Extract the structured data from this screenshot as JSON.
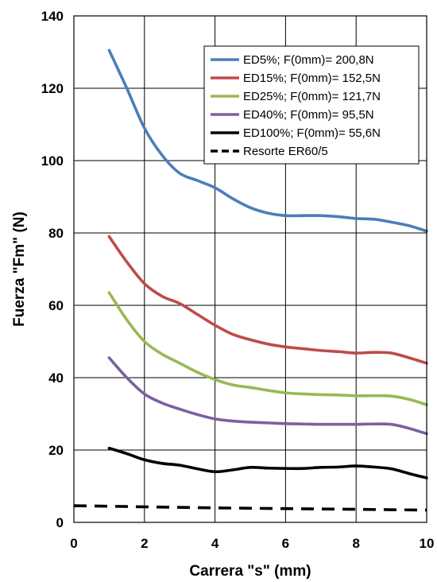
{
  "chart_data": {
    "type": "line",
    "xlabel": "Carrera \"s\" (mm)",
    "ylabel": "Fuerza \"Fm\" (N)",
    "xlim": [
      0,
      10
    ],
    "ylim": [
      0,
      140
    ],
    "xticks": [
      "0",
      "2",
      "4",
      "6",
      "8",
      "10"
    ],
    "yticks": [
      "0",
      "20",
      "40",
      "60",
      "80",
      "100",
      "120",
      "140"
    ],
    "grid": true,
    "legend_position": "top-right",
    "series": [
      {
        "name": "ED5%; F(0mm)= 200,8N",
        "color": "#4a7ebb",
        "dash": "solid",
        "x": [
          1,
          1.5,
          2,
          2.5,
          3,
          3.5,
          4,
          4.5,
          5,
          5.5,
          6,
          6.5,
          7,
          7.5,
          8,
          8.5,
          9,
          9.5,
          10
        ],
        "y": [
          130.5,
          120,
          109,
          101.5,
          96.5,
          94.5,
          92.5,
          89.5,
          87,
          85.5,
          84.8,
          84.8,
          84.8,
          84.5,
          84,
          83.8,
          83,
          82,
          80.5
        ]
      },
      {
        "name": "ED15%; F(0mm)= 152,5N",
        "color": "#be4b48",
        "dash": "solid",
        "x": [
          1,
          1.5,
          2,
          2.5,
          3,
          3.5,
          4,
          4.5,
          5,
          5.5,
          6,
          6.5,
          7,
          7.5,
          8,
          8.5,
          9,
          9.5,
          10
        ],
        "y": [
          79,
          72,
          66,
          62.5,
          60.5,
          57.5,
          54.5,
          52,
          50.5,
          49.3,
          48.5,
          48,
          47.5,
          47.2,
          46.8,
          47,
          46.8,
          45.5,
          44
        ]
      },
      {
        "name": "ED25%; F(0mm)= 121,7N",
        "color": "#98b954",
        "dash": "solid",
        "x": [
          1,
          1.5,
          2,
          2.5,
          3,
          3.5,
          4,
          4.5,
          5,
          5.5,
          6,
          6.5,
          7,
          7.5,
          8,
          8.5,
          9,
          9.5,
          10
        ],
        "y": [
          63.5,
          56,
          50,
          46.5,
          44,
          41.5,
          39.5,
          38,
          37.3,
          36.5,
          35.8,
          35.5,
          35.3,
          35.2,
          35,
          35,
          34.9,
          34,
          32.5
        ]
      },
      {
        "name": "ED40%; F(0mm)= 95,5N",
        "color": "#7d60a0",
        "dash": "solid",
        "x": [
          1,
          1.5,
          2,
          2.5,
          3,
          3.5,
          4,
          4.5,
          5,
          5.5,
          6,
          6.5,
          7,
          7.5,
          8,
          8.5,
          9,
          9.5,
          10
        ],
        "y": [
          45.5,
          40,
          35.5,
          33,
          31.3,
          29.8,
          28.6,
          28,
          27.7,
          27.5,
          27.3,
          27.2,
          27.1,
          27.1,
          27.1,
          27.2,
          27.1,
          26,
          24.5
        ]
      },
      {
        "name": "ED100%; F(0mm)= 55,6N",
        "color": "#000000",
        "dash": "solid",
        "x": [
          1,
          1.5,
          2,
          2.5,
          3,
          3.5,
          4,
          4.5,
          5,
          5.5,
          6,
          6.5,
          7,
          7.5,
          8,
          8.5,
          9,
          9.5,
          10
        ],
        "y": [
          20.5,
          19,
          17.3,
          16.3,
          15.8,
          14.8,
          14,
          14.5,
          15.2,
          15,
          14.9,
          14.9,
          15.2,
          15.3,
          15.6,
          15.3,
          14.8,
          13.5,
          12.3
        ]
      },
      {
        "name": "Resorte ER60/5",
        "color": "#000000",
        "dash": "dashed",
        "x": [
          0,
          2,
          4,
          6,
          8,
          10
        ],
        "y": [
          4.6,
          4.3,
          4.0,
          3.8,
          3.6,
          3.4
        ]
      }
    ]
  }
}
